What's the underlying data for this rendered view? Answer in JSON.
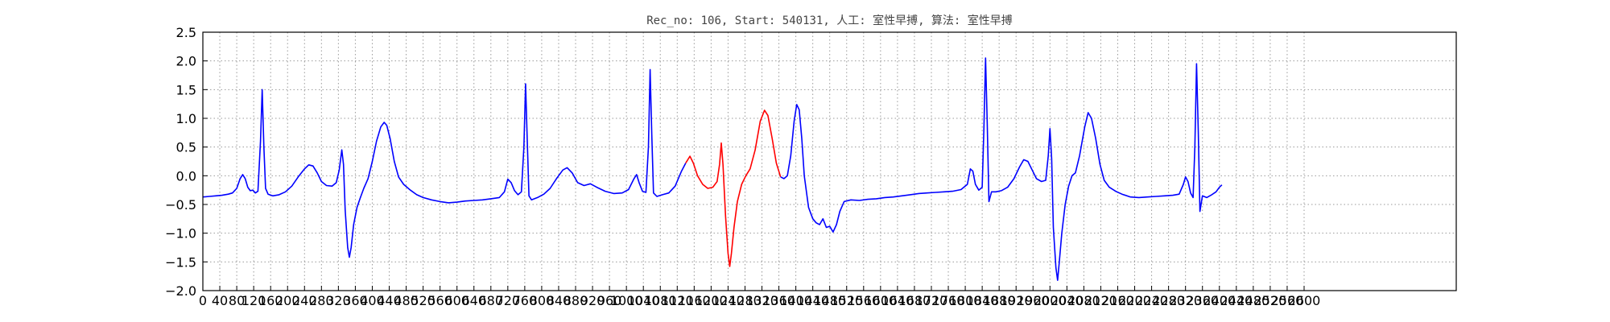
{
  "chart_data": {
    "type": "line",
    "title": "Rec_no: 106, Start: 540131, 人工: 室性早搏, 算法: 室性早搏",
    "xlabel": "",
    "ylabel": "",
    "xlim": [
      0,
      6000
    ],
    "ylim": [
      -2.0,
      2.5
    ],
    "grid": true,
    "yticks": [
      -2.0,
      -1.5,
      -1.0,
      -0.5,
      0.0,
      0.5,
      1.0,
      1.5,
      2.0,
      2.5
    ],
    "ytick_labels": [
      "−2.0",
      "−1.5",
      "−1.0",
      "−0.5",
      "0.0",
      "0.5",
      "1.0",
      "1.5",
      "2.0",
      "2.5"
    ],
    "xticks": [
      0,
      40,
      80,
      120,
      160,
      200,
      240,
      280,
      320,
      360,
      400,
      440,
      480,
      520,
      560,
      600,
      640,
      680,
      720,
      760,
      800,
      840,
      880,
      920,
      960,
      1000,
      1040,
      1080,
      1120,
      1160,
      1200,
      1240,
      1280,
      1320,
      1360,
      1400,
      1440,
      1480,
      1520,
      1560,
      1600,
      1640,
      1680,
      1720,
      1760,
      1800,
      1840,
      1880,
      1920,
      1960,
      2000,
      2040,
      2080,
      2120,
      2160,
      2200,
      2240,
      2280,
      2320,
      2360,
      2400,
      2440,
      2480,
      2520,
      2560,
      2600
    ],
    "xtick_labels": [
      "0",
      "40",
      "80",
      "120",
      "160",
      "200",
      "240",
      "280",
      "320",
      "360",
      "400",
      "440",
      "480",
      "520",
      "560",
      "600",
      "640",
      "680",
      "720",
      "760",
      "800",
      "840",
      "880",
      "920",
      "960",
      "1000",
      "1040",
      "1080",
      "1120",
      "1160",
      "1200",
      "1240",
      "1280",
      "1320",
      "1360",
      "1400",
      "1440",
      "1480",
      "1520",
      "1560",
      "1600",
      "1640",
      "1680",
      "1720",
      "1760",
      "1800",
      "1840",
      "1880",
      "1920",
      "1960",
      "2000",
      "2040",
      "2080",
      "2120",
      "2160",
      "2200",
      "2240",
      "2280",
      "2320",
      "2360",
      "2400",
      "2440",
      "2480",
      "2520",
      "2560",
      "2600"
    ],
    "series": [
      {
        "color": "#0000ff",
        "segments": [
          [
            [
              0,
              -0.37
            ],
            [
              15,
              -0.36
            ],
            [
              30,
              -0.35
            ],
            [
              45,
              -0.34
            ],
            [
              60,
              -0.32
            ],
            [
              70,
              -0.3
            ],
            [
              80,
              -0.22
            ],
            [
              88,
              -0.05
            ],
            [
              94,
              0.02
            ],
            [
              100,
              -0.05
            ],
            [
              106,
              -0.2
            ],
            [
              112,
              -0.26
            ],
            [
              118,
              -0.25
            ],
            [
              124,
              -0.3
            ],
            [
              130,
              -0.27
            ],
            [
              136,
              0.6
            ],
            [
              140,
              1.5
            ],
            [
              144,
              0.5
            ],
            [
              148,
              -0.22
            ],
            [
              154,
              -0.32
            ],
            [
              165,
              -0.35
            ],
            [
              180,
              -0.33
            ],
            [
              195,
              -0.28
            ],
            [
              210,
              -0.18
            ],
            [
              225,
              -0.02
            ],
            [
              240,
              0.12
            ],
            [
              250,
              0.19
            ],
            [
              260,
              0.17
            ],
            [
              270,
              0.05
            ],
            [
              280,
              -0.1
            ],
            [
              292,
              -0.17
            ],
            [
              305,
              -0.18
            ],
            [
              315,
              -0.12
            ],
            [
              322,
              0.1
            ],
            [
              328,
              0.45
            ],
            [
              332,
              0.2
            ],
            [
              336,
              -0.6
            ],
            [
              342,
              -1.25
            ],
            [
              346,
              -1.42
            ],
            [
              350,
              -1.25
            ],
            [
              356,
              -0.85
            ],
            [
              364,
              -0.55
            ],
            [
              372,
              -0.38
            ],
            [
              380,
              -0.22
            ],
            [
              390,
              -0.05
            ],
            [
              400,
              0.25
            ],
            [
              410,
              0.6
            ],
            [
              420,
              0.85
            ],
            [
              428,
              0.93
            ],
            [
              434,
              0.88
            ],
            [
              442,
              0.65
            ],
            [
              452,
              0.25
            ],
            [
              462,
              -0.02
            ],
            [
              474,
              -0.15
            ],
            [
              490,
              -0.25
            ],
            [
              505,
              -0.33
            ],
            [
              520,
              -0.38
            ],
            [
              540,
              -0.42
            ],
            [
              560,
              -0.45
            ],
            [
              580,
              -0.47
            ],
            [
              600,
              -0.46
            ],
            [
              620,
              -0.44
            ],
            [
              640,
              -0.43
            ],
            [
              660,
              -0.42
            ],
            [
              680,
              -0.4
            ],
            [
              700,
              -0.38
            ],
            [
              712,
              -0.28
            ],
            [
              720,
              -0.06
            ],
            [
              728,
              -0.12
            ],
            [
              736,
              -0.26
            ],
            [
              744,
              -0.33
            ],
            [
              752,
              -0.28
            ],
            [
              758,
              0.5
            ],
            [
              762,
              1.6
            ],
            [
              766,
              0.6
            ],
            [
              770,
              -0.35
            ],
            [
              776,
              -0.42
            ],
            [
              790,
              -0.38
            ],
            [
              805,
              -0.32
            ],
            [
              820,
              -0.22
            ],
            [
              835,
              -0.05
            ],
            [
              850,
              0.1
            ],
            [
              860,
              0.14
            ],
            [
              872,
              0.05
            ],
            [
              885,
              -0.12
            ],
            [
              900,
              -0.17
            ],
            [
              915,
              -0.14
            ],
            [
              930,
              -0.2
            ],
            [
              950,
              -0.27
            ],
            [
              970,
              -0.31
            ],
            [
              990,
              -0.3
            ],
            [
              1005,
              -0.24
            ],
            [
              1018,
              -0.05
            ],
            [
              1024,
              0.02
            ],
            [
              1030,
              -0.12
            ],
            [
              1038,
              -0.27
            ],
            [
              1046,
              -0.29
            ],
            [
              1052,
              0.5
            ],
            [
              1056,
              1.85
            ],
            [
              1060,
              0.7
            ],
            [
              1064,
              -0.3
            ],
            [
              1072,
              -0.36
            ],
            [
              1085,
              -0.33
            ],
            [
              1100,
              -0.3
            ],
            [
              1115,
              -0.18
            ],
            [
              1130,
              0.08
            ],
            [
              1140,
              0.22
            ]
          ]
        ]
      },
      {
        "color": "#ff0000",
        "segments": [
          [
            [
              1140,
              0.22
            ],
            [
              1150,
              0.34
            ],
            [
              1158,
              0.22
            ],
            [
              1168,
              0.0
            ],
            [
              1180,
              -0.15
            ],
            [
              1192,
              -0.22
            ],
            [
              1204,
              -0.2
            ],
            [
              1214,
              -0.1
            ],
            [
              1220,
              0.2
            ],
            [
              1224,
              0.57
            ],
            [
              1228,
              0.2
            ],
            [
              1234,
              -0.7
            ],
            [
              1240,
              -1.35
            ],
            [
              1244,
              -1.58
            ],
            [
              1248,
              -1.35
            ],
            [
              1254,
              -0.9
            ],
            [
              1262,
              -0.45
            ],
            [
              1272,
              -0.15
            ],
            [
              1282,
              0.0
            ],
            [
              1292,
              0.12
            ],
            [
              1304,
              0.45
            ],
            [
              1316,
              0.95
            ],
            [
              1326,
              1.14
            ],
            [
              1334,
              1.05
            ],
            [
              1344,
              0.65
            ],
            [
              1354,
              0.22
            ],
            [
              1364,
              -0.02
            ]
          ]
        ]
      },
      {
        "color": "#0000ff",
        "segments": [
          [
            [
              1364,
              -0.02
            ],
            [
              1372,
              -0.05
            ],
            [
              1380,
              0.0
            ],
            [
              1388,
              0.35
            ],
            [
              1396,
              0.95
            ],
            [
              1402,
              1.24
            ],
            [
              1408,
              1.15
            ],
            [
              1414,
              0.65
            ],
            [
              1420,
              0.0
            ],
            [
              1430,
              -0.55
            ],
            [
              1440,
              -0.75
            ],
            [
              1448,
              -0.82
            ],
            [
              1456,
              -0.85
            ],
            [
              1464,
              -0.75
            ],
            [
              1472,
              -0.9
            ],
            [
              1480,
              -0.88
            ],
            [
              1488,
              -0.98
            ],
            [
              1496,
              -0.85
            ],
            [
              1504,
              -0.62
            ],
            [
              1514,
              -0.45
            ],
            [
              1530,
              -0.42
            ],
            [
              1550,
              -0.43
            ],
            [
              1570,
              -0.41
            ],
            [
              1590,
              -0.4
            ],
            [
              1610,
              -0.38
            ],
            [
              1630,
              -0.37
            ],
            [
              1650,
              -0.35
            ],
            [
              1670,
              -0.33
            ],
            [
              1690,
              -0.31
            ],
            [
              1710,
              -0.3
            ],
            [
              1730,
              -0.29
            ],
            [
              1750,
              -0.28
            ],
            [
              1770,
              -0.27
            ],
            [
              1790,
              -0.24
            ],
            [
              1805,
              -0.15
            ],
            [
              1812,
              0.12
            ],
            [
              1818,
              0.08
            ],
            [
              1824,
              -0.15
            ],
            [
              1832,
              -0.25
            ],
            [
              1840,
              -0.2
            ],
            [
              1844,
              0.8
            ],
            [
              1848,
              2.05
            ],
            [
              1852,
              0.9
            ],
            [
              1856,
              -0.45
            ],
            [
              1862,
              -0.28
            ],
            [
              1872,
              -0.28
            ],
            [
              1885,
              -0.26
            ],
            [
              1900,
              -0.2
            ],
            [
              1915,
              -0.05
            ],
            [
              1928,
              0.15
            ],
            [
              1938,
              0.28
            ],
            [
              1948,
              0.25
            ],
            [
              1958,
              0.1
            ],
            [
              1968,
              -0.05
            ],
            [
              1980,
              -0.1
            ],
            [
              1990,
              -0.08
            ],
            [
              1996,
              0.35
            ],
            [
              2000,
              0.82
            ],
            [
              2004,
              0.3
            ],
            [
              2008,
              -0.9
            ],
            [
              2014,
              -1.6
            ],
            [
              2018,
              -1.82
            ],
            [
              2022,
              -1.5
            ],
            [
              2028,
              -1.0
            ],
            [
              2036,
              -0.5
            ],
            [
              2044,
              -0.18
            ],
            [
              2052,
              0.0
            ],
            [
              2060,
              0.05
            ],
            [
              2070,
              0.35
            ],
            [
              2082,
              0.85
            ],
            [
              2090,
              1.1
            ],
            [
              2098,
              1.0
            ],
            [
              2108,
              0.65
            ],
            [
              2118,
              0.2
            ],
            [
              2128,
              -0.08
            ],
            [
              2140,
              -0.2
            ],
            [
              2155,
              -0.27
            ],
            [
              2170,
              -0.32
            ],
            [
              2190,
              -0.37
            ],
            [
              2210,
              -0.38
            ],
            [
              2230,
              -0.37
            ],
            [
              2250,
              -0.36
            ],
            [
              2270,
              -0.35
            ],
            [
              2290,
              -0.34
            ],
            [
              2305,
              -0.32
            ],
            [
              2315,
              -0.15
            ],
            [
              2320,
              -0.02
            ],
            [
              2326,
              -0.1
            ],
            [
              2332,
              -0.3
            ],
            [
              2338,
              -0.38
            ],
            [
              2342,
              0.5
            ],
            [
              2346,
              1.95
            ],
            [
              2350,
              0.8
            ],
            [
              2354,
              -0.62
            ],
            [
              2360,
              -0.35
            ],
            [
              2370,
              -0.38
            ],
            [
              2382,
              -0.33
            ],
            [
              2392,
              -0.28
            ],
            [
              2400,
              -0.2
            ],
            [
              2406,
              -0.16
            ]
          ]
        ]
      }
    ]
  }
}
